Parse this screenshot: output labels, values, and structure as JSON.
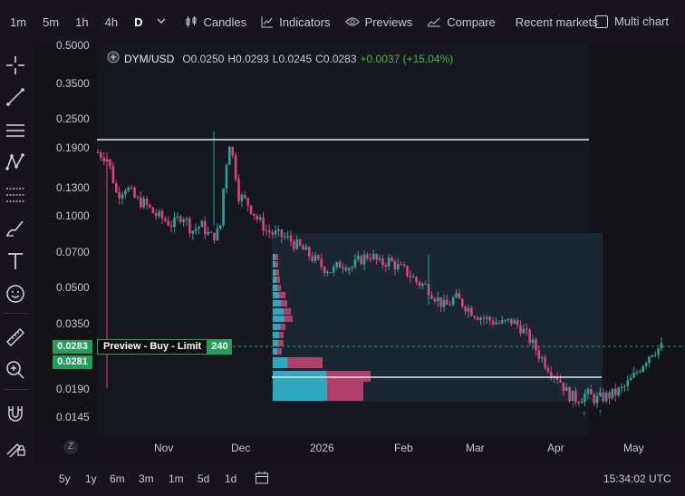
{
  "toolbar": {
    "timeframes": [
      "1m",
      "5m",
      "1h",
      "4h",
      "D"
    ],
    "active_timeframe": "D",
    "candles_label": "Candles",
    "indicators_label": "Indicators",
    "previews_label": "Previews",
    "compare_label": "Compare",
    "recent_markets_label": "Recent markets",
    "multi_chart_label": "Multi chart"
  },
  "legend": {
    "symbol": "DYM/USD",
    "open": "O0.0250",
    "high": "H0.0293",
    "low": "L0.0245",
    "close": "C0.0283",
    "change": "+0.0037 (+15.04%)"
  },
  "chart_data": {
    "type": "candlestick",
    "y_scale": "log",
    "y_ticks": [
      "0.5000",
      "0.3500",
      "0.2500",
      "0.1900",
      "0.1300",
      "0.1000",
      "0.0700",
      "0.0500",
      "0.0350",
      "0.0190",
      "0.0145"
    ],
    "x_ticks": [
      "Nov",
      "Dec",
      "2026",
      "Feb",
      "Mar",
      "Apr",
      "May"
    ],
    "last_price": "0.0283",
    "order_price": "0.0281",
    "horizontal_lines": [
      0.205,
      0.0212
    ],
    "close_path": [
      0.18,
      0.17,
      0.12,
      0.13,
      0.115,
      0.11,
      0.1,
      0.095,
      0.09,
      0.1,
      0.085,
      0.09,
      0.08,
      0.085,
      0.2,
      0.12,
      0.11,
      0.095,
      0.085,
      0.082,
      0.08,
      0.075,
      0.07,
      0.065,
      0.06,
      0.058,
      0.063,
      0.06,
      0.065,
      0.068,
      0.062,
      0.064,
      0.06,
      0.057,
      0.052,
      0.05,
      0.045,
      0.041,
      0.045,
      0.042,
      0.039,
      0.037,
      0.036,
      0.035,
      0.036,
      0.034,
      0.03,
      0.026,
      0.023,
      0.021,
      0.018,
      0.017,
      0.018,
      0.017,
      0.0175,
      0.018,
      0.019,
      0.021,
      0.024,
      0.027,
      0.028
    ]
  },
  "order": {
    "label": "Preview - Buy - Limit",
    "quantity": "240"
  },
  "bottom": {
    "ranges": [
      "5y",
      "1y",
      "6m",
      "3m",
      "1m",
      "5d",
      "1d"
    ],
    "time": "15:34:02 UTC",
    "z_label": "Z"
  }
}
